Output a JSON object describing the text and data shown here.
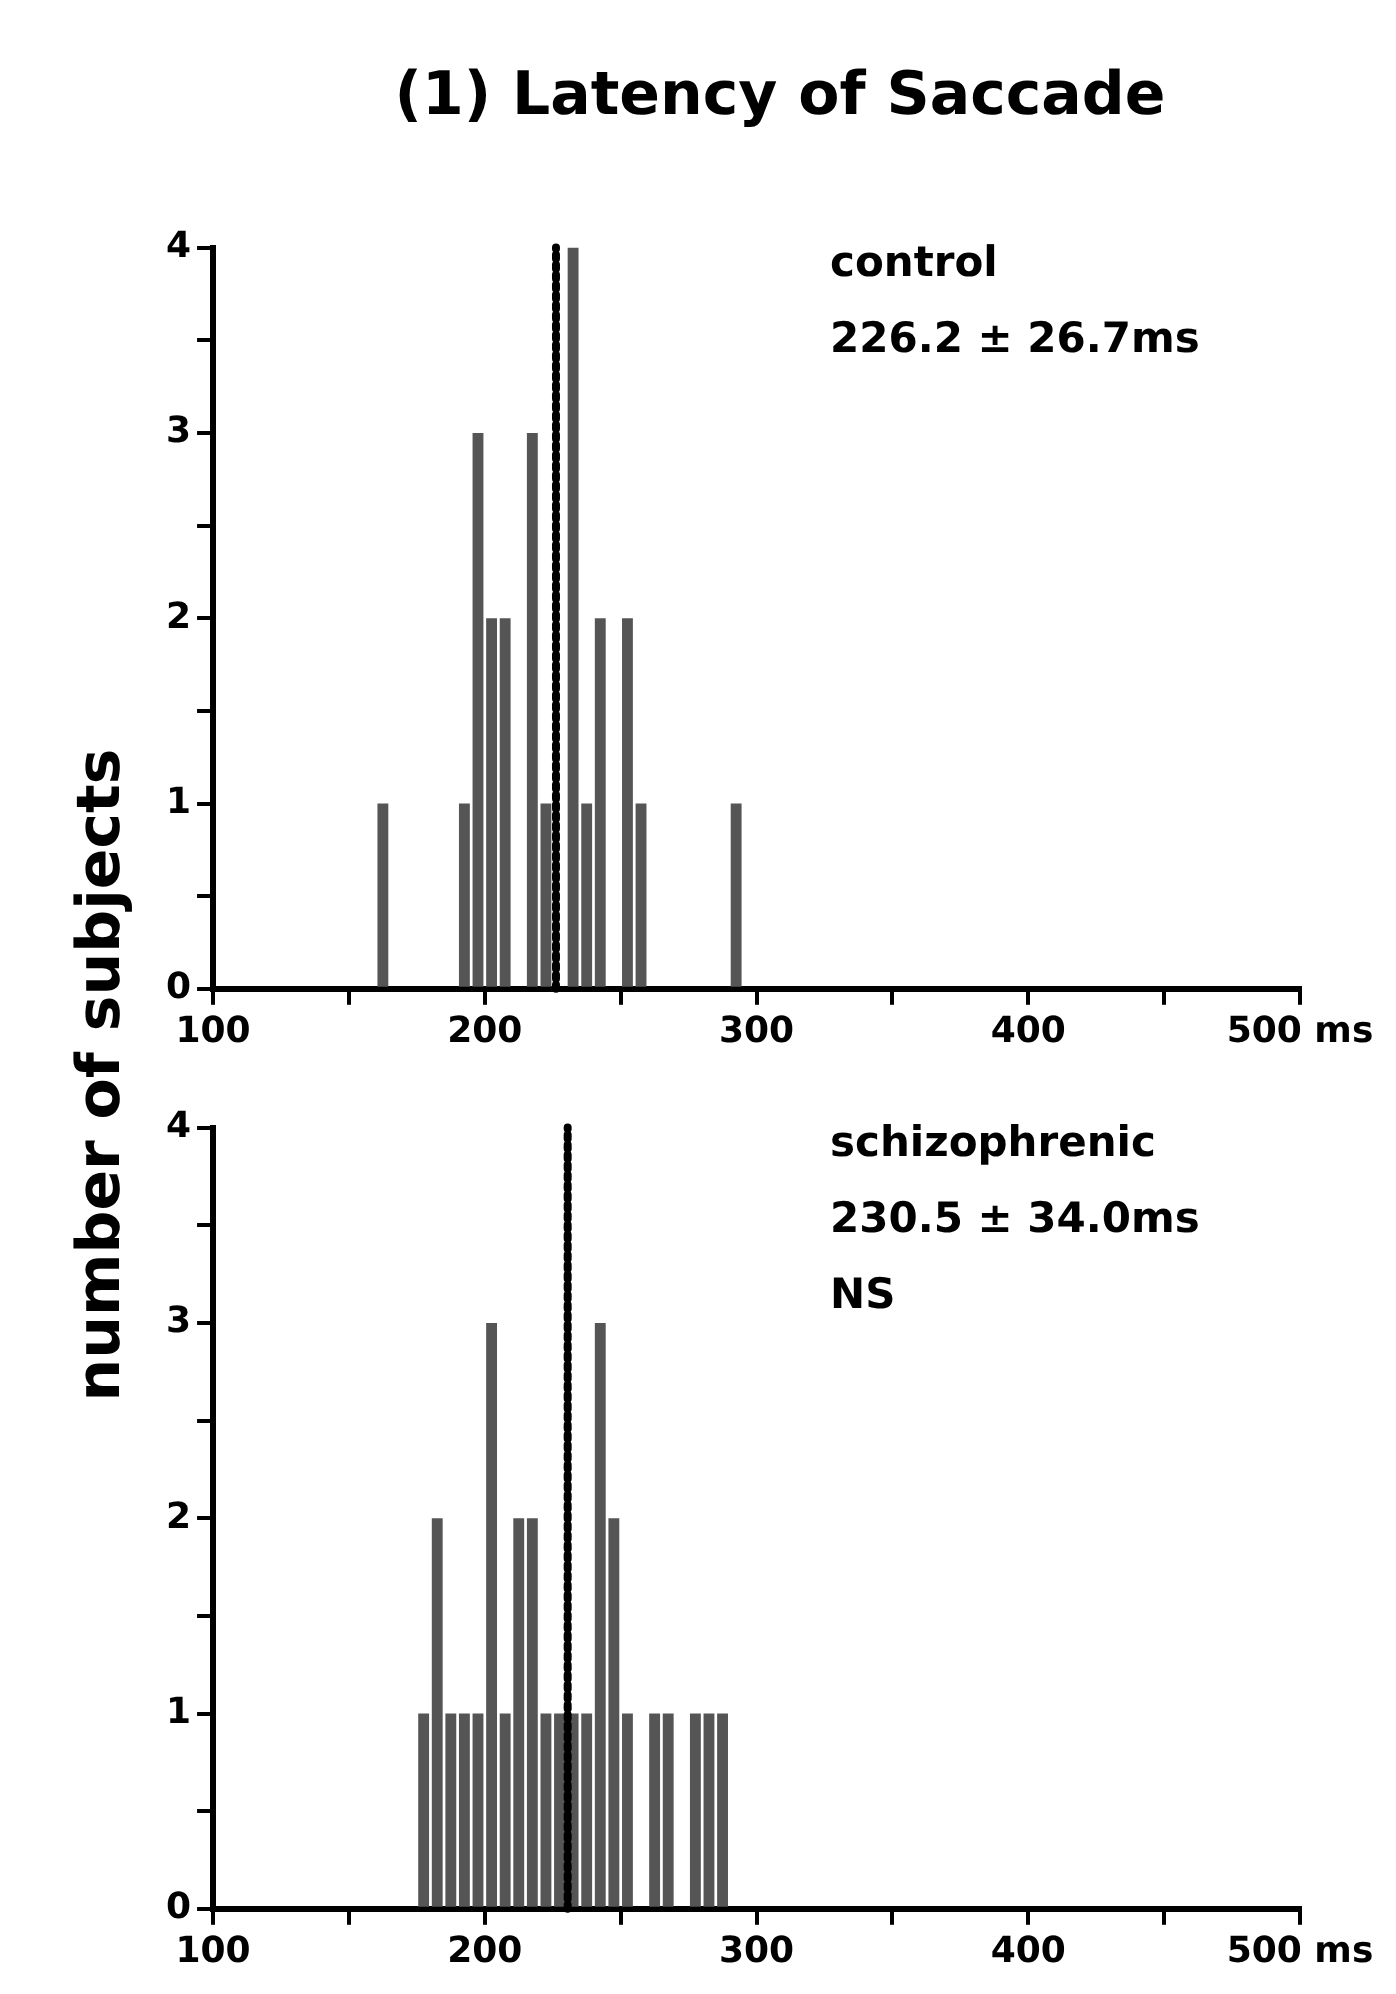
{
  "chart_data": [
    {
      "type": "histogram",
      "title": "(1) Latency of Saccade",
      "ylabel": "number of subjects",
      "annotations": [
        "control",
        "226.2 ± 26.7ms"
      ],
      "bins": [
        160,
        165,
        170,
        175,
        180,
        185,
        190,
        195,
        200,
        205,
        210,
        215,
        220,
        225,
        230,
        235,
        240,
        245,
        250,
        255,
        260,
        265,
        270,
        275,
        280,
        285,
        290,
        295
      ],
      "values": [
        1,
        0,
        0,
        0,
        0,
        0,
        1,
        3,
        2,
        2,
        0,
        3,
        1,
        0,
        4,
        1,
        2,
        0,
        2,
        1,
        0,
        0,
        0,
        0,
        0,
        0,
        1
      ],
      "color": "#555555",
      "xlim": [
        100,
        500
      ],
      "xticks": [
        100,
        {
          "value": 150,
          "label": null
        },
        200,
        {
          "value": 250,
          "label": null
        },
        300,
        {
          "value": 350,
          "label": null
        },
        400,
        {
          "value": 450,
          "label": null
        },
        {
          "value": 500,
          "label": "500 ms"
        }
      ],
      "ylim": [
        0,
        4
      ],
      "yticks": [
        0,
        {
          "value": 0.5,
          "label": null
        },
        1,
        {
          "value": 1.5,
          "label": null
        },
        2,
        {
          "value": 2.5,
          "label": null
        },
        3,
        {
          "value": 3.5,
          "label": null
        },
        4
      ],
      "ref_lines": [
        {
          "axis": "x",
          "value": 226.2,
          "line_style": "dotted",
          "color": "#000000"
        }
      ]
    },
    {
      "type": "histogram",
      "annotations": [
        "schizophrenic",
        "230.5 ± 34.0ms",
        "NS"
      ],
      "bins": [
        175,
        180,
        185,
        190,
        195,
        200,
        205,
        210,
        215,
        220,
        225,
        230,
        235,
        240,
        245,
        250,
        255,
        260,
        265,
        270,
        275,
        280,
        285,
        290
      ],
      "values": [
        1,
        2,
        1,
        1,
        1,
        3,
        1,
        2,
        2,
        1,
        1,
        1,
        1,
        3,
        2,
        1,
        0,
        1,
        1,
        0,
        1,
        1,
        1
      ],
      "color": "#555555",
      "xlim": [
        100,
        500
      ],
      "xticks": [
        100,
        {
          "value": 150,
          "label": null
        },
        200,
        {
          "value": 250,
          "label": null
        },
        300,
        {
          "value": 350,
          "label": null
        },
        400,
        {
          "value": 450,
          "label": null
        },
        {
          "value": 500,
          "label": "500 ms"
        }
      ],
      "ylim": [
        0,
        4
      ],
      "yticks": [
        0,
        {
          "value": 0.5,
          "label": null
        },
        1,
        {
          "value": 1.5,
          "label": null
        },
        2,
        {
          "value": 2.5,
          "label": null
        },
        3,
        {
          "value": 3.5,
          "label": null
        },
        4
      ],
      "ref_lines": [
        {
          "axis": "x",
          "value": 230.5,
          "line_style": "dotted",
          "color": "#000000"
        }
      ]
    }
  ]
}
